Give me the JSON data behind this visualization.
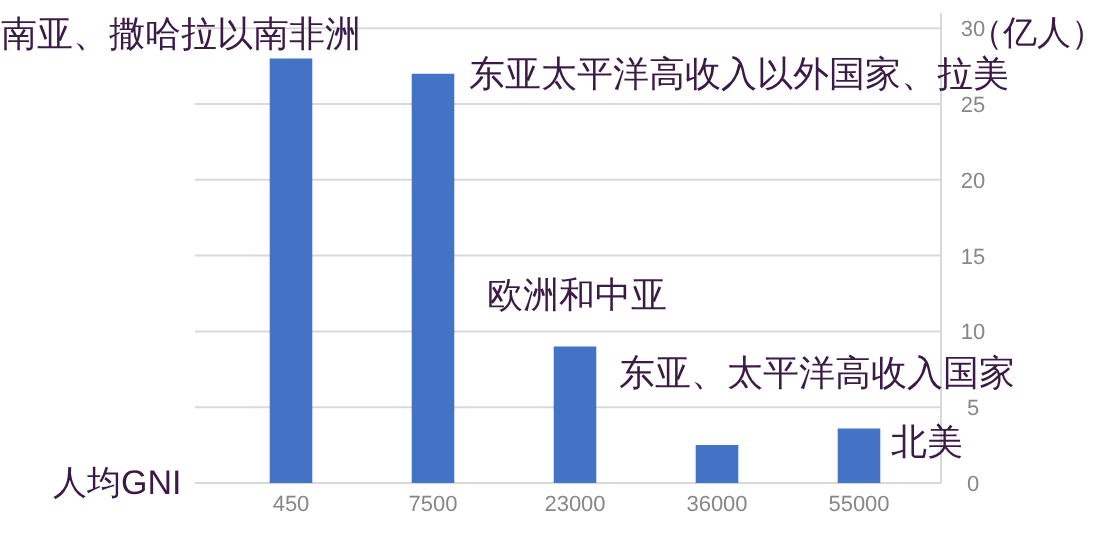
{
  "chart_data": {
    "type": "bar",
    "xlabel": "人均GNI",
    "ylabel": "（亿人）",
    "categories": [
      "450",
      "7500",
      "23000",
      "36000",
      "55000"
    ],
    "values": [
      28,
      27,
      9,
      2.5,
      3.6
    ],
    "color": "#4472c4",
    "ylim": [
      0,
      31
    ],
    "yticks": [
      0,
      5,
      10,
      15,
      20,
      25,
      30
    ],
    "grid": "y",
    "annotations": [
      {
        "text": "南亚、撒哈拉以南非洲",
        "x": "450",
        "y": 28
      },
      {
        "text": "东亚太平洋高收入以外国家、拉美",
        "x": "7500",
        "y": 27
      },
      {
        "text": "欧洲和中亚",
        "x": "23000",
        "y": 9
      },
      {
        "text": "东亚、太平洋高收入国家",
        "x": "36000",
        "y": 2.5
      },
      {
        "text": "北美",
        "x": "55000",
        "y": 3.6
      }
    ]
  }
}
